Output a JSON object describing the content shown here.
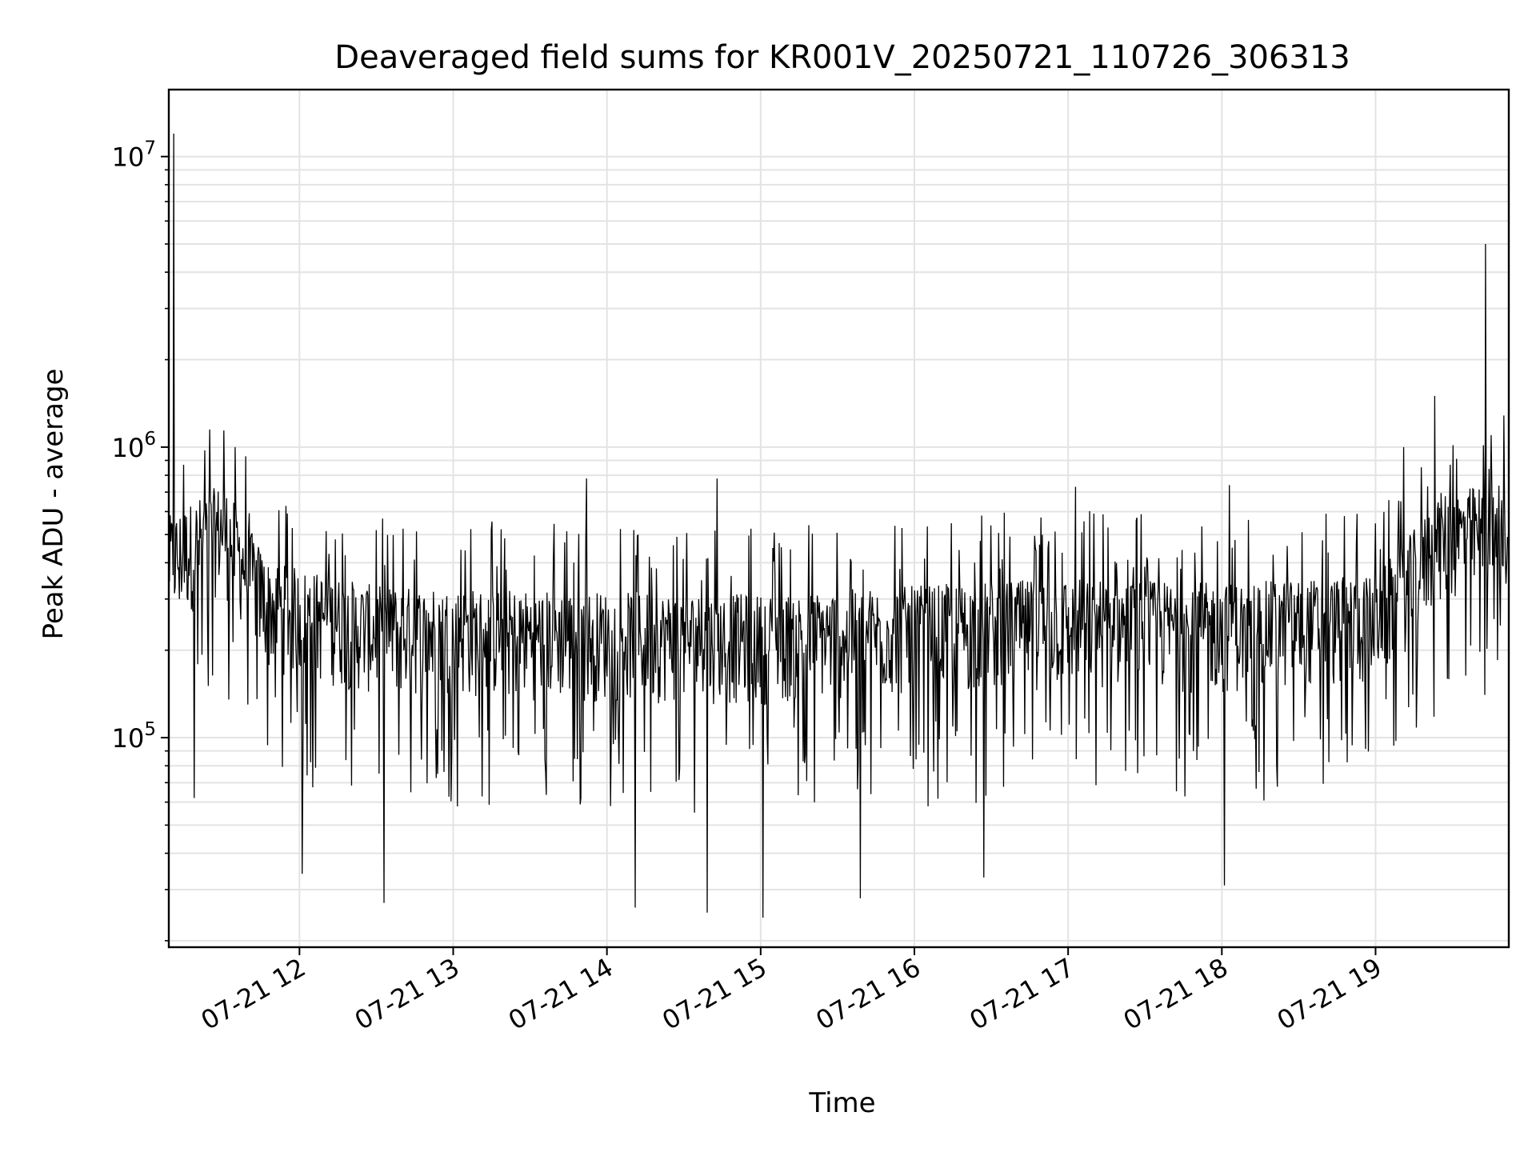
{
  "chart_data": {
    "type": "line",
    "title": "Deaveraged field sums for KR001V_20250721_110726_306313",
    "xlabel": "Time",
    "ylabel": "Peak ADU - average",
    "yscale": "log",
    "grid": true,
    "line_color": "#000000",
    "grid_color": "#e3e3e3",
    "x_range": [
      "2025-07-21 11:09",
      "2025-07-21 19:52"
    ],
    "ylim": [
      19000,
      17000000
    ],
    "x_ticks": [
      {
        "time": "2025-07-21 12:00",
        "label": "07-21 12"
      },
      {
        "time": "2025-07-21 13:00",
        "label": "07-21 13"
      },
      {
        "time": "2025-07-21 14:00",
        "label": "07-21 14"
      },
      {
        "time": "2025-07-21 15:00",
        "label": "07-21 15"
      },
      {
        "time": "2025-07-21 16:00",
        "label": "07-21 16"
      },
      {
        "time": "2025-07-21 17:00",
        "label": "07-21 17"
      },
      {
        "time": "2025-07-21 18:00",
        "label": "07-21 18"
      },
      {
        "time": "2025-07-21 19:00",
        "label": "07-21 19"
      }
    ],
    "y_ticks": [
      {
        "value": 100000,
        "base": "10",
        "exp": "5"
      },
      {
        "value": 1000000,
        "base": "10",
        "exp": "6"
      },
      {
        "value": 10000000,
        "base": "10",
        "exp": "7"
      }
    ],
    "series": [
      {
        "points": [
          {
            "time": "2025-07-21 11:09",
            "value": 500000
          },
          {
            "time": "2025-07-21 11:11",
            "value": 12000000
          },
          {
            "time": "2025-07-21 11:13",
            "value": 300000
          },
          {
            "time": "2025-07-21 11:19",
            "value": 62000
          },
          {
            "time": "2025-07-21 11:25",
            "value": 1150000
          },
          {
            "time": "2025-07-21 11:35",
            "value": 1000000
          },
          {
            "time": "2025-07-21 12:01",
            "value": 34000
          },
          {
            "time": "2025-07-21 12:33",
            "value": 27000
          },
          {
            "time": "2025-07-21 13:52",
            "value": 780000
          },
          {
            "time": "2025-07-21 14:11",
            "value": 26000
          },
          {
            "time": "2025-07-21 14:39",
            "value": 25000
          },
          {
            "time": "2025-07-21 14:43",
            "value": 780000
          },
          {
            "time": "2025-07-21 15:01",
            "value": 24000
          },
          {
            "time": "2025-07-21 15:39",
            "value": 28000
          },
          {
            "time": "2025-07-21 16:27",
            "value": 33000
          },
          {
            "time": "2025-07-21 17:03",
            "value": 730000
          },
          {
            "time": "2025-07-21 18:01",
            "value": 31000
          },
          {
            "time": "2025-07-21 18:03",
            "value": 740000
          },
          {
            "time": "2025-07-21 19:11",
            "value": 1000000
          },
          {
            "time": "2025-07-21 19:23",
            "value": 1500000
          },
          {
            "time": "2025-07-21 19:43",
            "value": 5000000
          },
          {
            "time": "2025-07-21 19:45",
            "value": 1100000
          }
        ]
      }
    ],
    "trend": [
      {
        "time": "2025-07-21 11:09",
        "value": 400000
      },
      {
        "time": "2025-07-21 11:30",
        "value": 520000
      },
      {
        "time": "2025-07-21 11:48",
        "value": 280000
      },
      {
        "time": "2025-07-21 12:30",
        "value": 230000
      },
      {
        "time": "2025-07-21 14:00",
        "value": 220000
      },
      {
        "time": "2025-07-21 15:00",
        "value": 215000
      },
      {
        "time": "2025-07-21 16:00",
        "value": 230000
      },
      {
        "time": "2025-07-21 17:00",
        "value": 245000
      },
      {
        "time": "2025-07-21 18:00",
        "value": 235000
      },
      {
        "time": "2025-07-21 19:00",
        "value": 250000
      },
      {
        "time": "2025-07-21 19:12",
        "value": 330000
      },
      {
        "time": "2025-07-21 19:25",
        "value": 480000
      },
      {
        "time": "2025-07-21 19:52",
        "value": 530000
      }
    ]
  }
}
